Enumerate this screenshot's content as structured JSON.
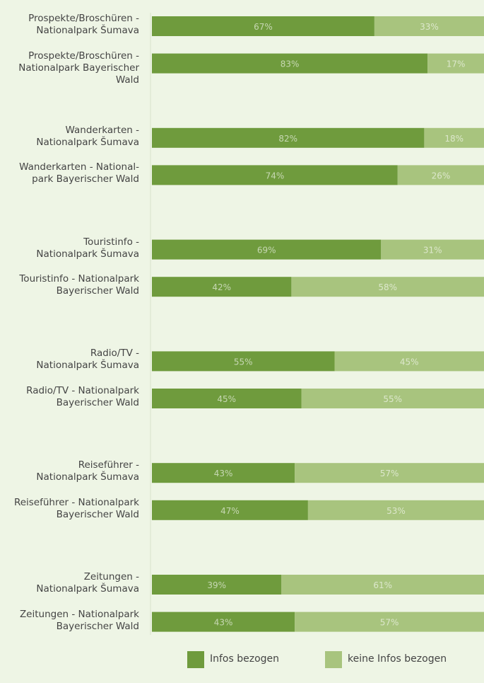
{
  "chart_data": {
    "type": "stacked-bar-horizontal",
    "categories": [
      "Prospekte/Broschüren -\nNationalpark Šumava",
      "Prospekte/Broschüren -\nNationalpark Bayerischer\nWald",
      null,
      "Wanderkarten -\nNationalpark Šumava",
      "Wanderkarten - National-\npark Bayerischer Wald",
      null,
      "Touristinfo -\nNationalpark Šumava",
      "Touristinfo - Nationalpark\nBayerischer Wald",
      null,
      "Radio/TV -\nNationalpark Šumava",
      "Radio/TV - Nationalpark\nBayerischer Wald",
      null,
      "Reiseführer -\nNationalpark Šumava",
      "Reiseführer - Nationalpark\nBayerischer Wald",
      null,
      "Zeitungen -\nNationalpark Šumava",
      "Zeitungen - Nationalpark\nBayerischer Wald"
    ],
    "series": [
      {
        "name": "Infos bezogen",
        "color": "#6f9b3d",
        "values": [
          67,
          83,
          null,
          82,
          74,
          null,
          69,
          42,
          null,
          55,
          45,
          null,
          43,
          47,
          null,
          39,
          43
        ],
        "value_labels": [
          "67%",
          "83%",
          null,
          "82%",
          "74%",
          null,
          "69%",
          "42%",
          null,
          "55%",
          "45%",
          null,
          "43%",
          "47%",
          null,
          "39%",
          "43%"
        ]
      },
      {
        "name": "keine Infos bezogen",
        "color": "#a8c47e",
        "values": [
          33,
          17,
          null,
          18,
          26,
          null,
          31,
          58,
          null,
          45,
          55,
          null,
          57,
          53,
          null,
          61,
          57
        ],
        "value_labels": [
          "33%",
          "17%",
          null,
          "18%",
          "26%",
          null,
          "31%",
          "58%",
          null,
          "45%",
          "55%",
          null,
          "57%",
          "53%",
          null,
          "61%",
          "57%"
        ]
      }
    ],
    "xlim": [
      0,
      100
    ],
    "legend": "bottom"
  }
}
